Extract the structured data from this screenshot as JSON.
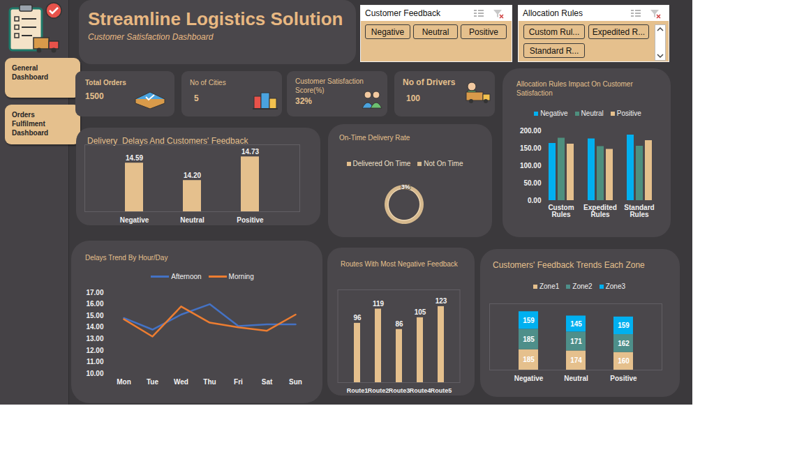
{
  "header": {
    "title": "Streamline Logistics Solution",
    "subtitle": "Customer Satisfaction Dashboard"
  },
  "navigation": [
    {
      "label": "General Dashboard"
    },
    {
      "label": "Orders Fulfilment Dashboard"
    }
  ],
  "slicers": [
    {
      "title": "Customer Feedback",
      "items": [
        "Negative",
        "Neutral",
        "Positive"
      ]
    },
    {
      "title": "Allocation Rules",
      "items": [
        "Custom Rul...",
        "Expedited R...",
        "Standard R..."
      ]
    }
  ],
  "kpis": [
    {
      "label": "Total Orders",
      "value": 1500
    },
    {
      "label": "No of Cities",
      "value": 5
    },
    {
      "label": "Customer Satisfaction Score(%)",
      "value": 32,
      "value_label": "32%"
    },
    {
      "label": "No of Drivers",
      "value": 100
    }
  ],
  "chart_data": [
    {
      "type": "bar",
      "title": "Delivery  Delays And Customers' Feedback",
      "categories": [
        "Negative",
        "Neutral",
        "Positive"
      ],
      "values": [
        14.59,
        14.2,
        14.73
      ],
      "value_labels": [
        "14.59",
        "14.20",
        "14.73"
      ],
      "color": "#e5c08d",
      "ylim": [
        13.5,
        15.0
      ],
      "data_labels": true,
      "tick_labels": "x"
    },
    {
      "type": "donut",
      "title": "On-Time Delivery Rate",
      "categories": [
        "Delivered On Time",
        "Not On Time"
      ],
      "values": [
        3,
        97
      ],
      "value_labels": [
        "3%",
        null
      ],
      "colors": [
        "#e5c08d",
        "#d6b98e"
      ],
      "legend": "top",
      "data_labels": true
    },
    {
      "type": "bar",
      "title": "Allocation Rules Impact On Customer Satisfaction",
      "categories": [
        "Custom Rules",
        "Expedited Rules",
        "Standard Rules"
      ],
      "series": [
        {
          "name": "Negative",
          "color": "#00b0f0",
          "values": [
            164,
            177,
            188
          ]
        },
        {
          "name": "Neutral",
          "color": "#4e8f7e",
          "values": [
            179,
            155,
            156
          ]
        },
        {
          "name": "Positive",
          "color": "#e5c08d",
          "values": [
            162,
            147,
            172
          ]
        }
      ],
      "ylim": [
        0,
        200
      ],
      "yticks": [
        {
          "value": 0,
          "label": "0.00"
        },
        {
          "value": 50,
          "label": "50.00"
        },
        {
          "value": 100,
          "label": "100.00"
        },
        {
          "value": 150,
          "label": "150.00"
        },
        {
          "value": 200,
          "label": "200.00"
        }
      ],
      "legend": "top"
    },
    {
      "type": "line",
      "title": "Delays Trend By Hour/Day",
      "categories": [
        "Mon",
        "Tue",
        "Wed",
        "Thu",
        "Fri",
        "Sat",
        "Sun"
      ],
      "series": [
        {
          "name": "Afternoon",
          "color": "#4472c4",
          "values": [
            14.8,
            13.8,
            15.1,
            16,
            14.1,
            14.25,
            14.25
          ]
        },
        {
          "name": "Morning",
          "color": "#ed7d31",
          "values": [
            14.7,
            13.2,
            15.8,
            14.4,
            14,
            13.7,
            15.1
          ]
        }
      ],
      "ylim": [
        10,
        17
      ],
      "yticks": [
        {
          "value": 10,
          "label": "10.00"
        },
        {
          "value": 11,
          "label": "11.00"
        },
        {
          "value": 12,
          "label": "12.00"
        },
        {
          "value": 13,
          "label": "13.00"
        },
        {
          "value": 14,
          "label": "14.00"
        },
        {
          "value": 15,
          "label": "15.00"
        },
        {
          "value": 16,
          "label": "16.00"
        },
        {
          "value": 17,
          "label": "17.00"
        }
      ],
      "legend": "top"
    },
    {
      "type": "bar",
      "title": "Routes With Most Negative Feedback",
      "categories": [
        "Route1",
        "Route2",
        "Route3",
        "Route4",
        "Route5"
      ],
      "values": [
        96,
        119,
        86,
        105,
        123
      ],
      "color": "#e5c08d",
      "ylim": [
        0,
        150
      ],
      "data_labels": true,
      "tick_labels": "x"
    },
    {
      "type": "bar",
      "title": "Customers' Feedback Trends Each Zone",
      "stacked": true,
      "categories": [
        "Negative",
        "Neutral",
        "Positive"
      ],
      "series": [
        {
          "name": "Zone1",
          "color": "#e5c08d",
          "values": [
            185,
            174,
            160
          ]
        },
        {
          "name": "Zone2",
          "color": "#4e8f8a",
          "values": [
            185,
            171,
            162
          ]
        },
        {
          "name": "Zone3",
          "color": "#00b0f0",
          "values": [
            159,
            145,
            159
          ]
        }
      ],
      "ylim": [
        0,
        600
      ],
      "data_labels": true,
      "tick_labels": "x",
      "legend": "top"
    }
  ]
}
